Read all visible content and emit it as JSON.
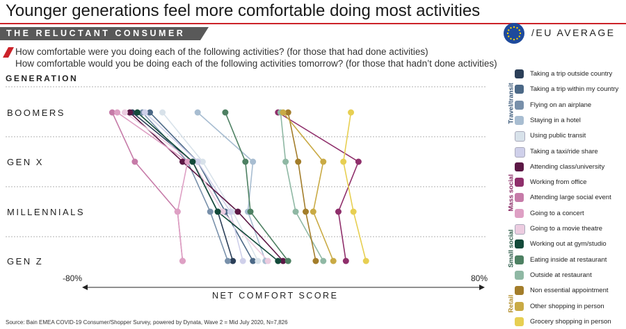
{
  "header": {
    "title": "Younger generations feel more comfortable doing most activities",
    "banner": "THE RELUCTANT CONSUMER",
    "region": "/EU AVERAGE"
  },
  "questions": [
    "How comfortable were you doing each of the following activities? (for those that had done activities)",
    "How comfortable would you be doing each of the following activities tomorrow? (for those that hadn’t done activities)"
  ],
  "footer": {
    "source": "Source: Bain EMEA COVID-19 Consumer/Shopper Survey, powered by Dynata, Wave 2 = Mid July 2020, N=7,826"
  },
  "chart_data": {
    "type": "line",
    "title": "",
    "ylabel": "GENERATION",
    "xlabel": "NET COMFORT SCORE",
    "xlim": [
      -80,
      80
    ],
    "xmin_label": "-80%",
    "xmax_label": "80%",
    "categories": [
      "BOOMERS",
      "GEN X",
      "MILLENNIALS",
      "GEN Z"
    ],
    "groups": [
      {
        "name": "Travel/transit",
        "color": "#3c5a7a"
      },
      {
        "name": "Mass social",
        "color": "#8b2b66"
      },
      {
        "name": "Small social",
        "color": "#2e5d4a"
      },
      {
        "name": "Retail",
        "color": "#b38f2b"
      }
    ],
    "series": [
      {
        "name": "Taking a trip outside country",
        "color": "#2b3f58",
        "group": "Travel/transit",
        "values": [
          -60,
          -36,
          -26,
          -20
        ]
      },
      {
        "name": "Taking a trip within my country",
        "color": "#4b6886",
        "group": "Travel/transit",
        "values": [
          -53,
          -34,
          -23,
          -12
        ]
      },
      {
        "name": "Flying on an airplane",
        "color": "#7890aa",
        "group": "Travel/transit",
        "values": [
          -56,
          -38,
          -29,
          -22
        ]
      },
      {
        "name": "Staying in a hotel",
        "color": "#a8bdd1",
        "group": "Travel/transit",
        "values": [
          -34,
          -12,
          -14,
          -7
        ]
      },
      {
        "name": "Using public transit",
        "color": "#d8e2ea",
        "group": "Travel/transit",
        "values": [
          -48,
          -32,
          -20,
          -10
        ]
      },
      {
        "name": "Taking a taxi/ride share",
        "color": "#cfd0ea",
        "group": "Travel/transit",
        "values": [
          -55,
          -34,
          -21,
          -16
        ]
      },
      {
        "name": "Attending class/university",
        "color": "#5c1845",
        "group": "Mass social",
        "values": [
          -61,
          -40,
          -18,
          0
        ]
      },
      {
        "name": "Working from office",
        "color": "#8f2f6b",
        "group": "Mass social",
        "values": [
          -2,
          30,
          22,
          25
        ]
      },
      {
        "name": "Attending large social event",
        "color": "#c67ba8",
        "group": "Mass social",
        "values": [
          -68,
          -59,
          -42,
          -40
        ]
      },
      {
        "name": "Going to a concert",
        "color": "#dea0c4",
        "group": "Mass social",
        "values": [
          -66,
          -38,
          -42,
          -40
        ]
      },
      {
        "name": "Going to a movie theatre",
        "color": "#eccce0",
        "group": "Mass social",
        "values": [
          -63,
          -36,
          -24,
          -6
        ]
      },
      {
        "name": "Working out at gym/studio",
        "color": "#134a3a",
        "group": "Small social",
        "values": [
          -58,
          -36,
          -26,
          -2
        ]
      },
      {
        "name": "Eating inside at restaurant",
        "color": "#4d8062",
        "group": "Small social",
        "values": [
          -23,
          -15,
          -13,
          2
        ]
      },
      {
        "name": "Outside at restaurant",
        "color": "#8fb8a4",
        "group": "Small social",
        "values": [
          -1,
          1,
          5,
          16
        ]
      },
      {
        "name": "Non essential appointment",
        "color": "#a37d2a",
        "group": "Retail",
        "values": [
          2,
          6,
          9,
          13
        ]
      },
      {
        "name": "Other shopping in person",
        "color": "#c9aa44",
        "group": "Retail",
        "values": [
          0,
          16,
          12,
          20
        ]
      },
      {
        "name": "Grocery shopping in person",
        "color": "#e7cf52",
        "group": "Retail",
        "values": [
          27,
          24,
          28,
          33
        ]
      }
    ]
  }
}
